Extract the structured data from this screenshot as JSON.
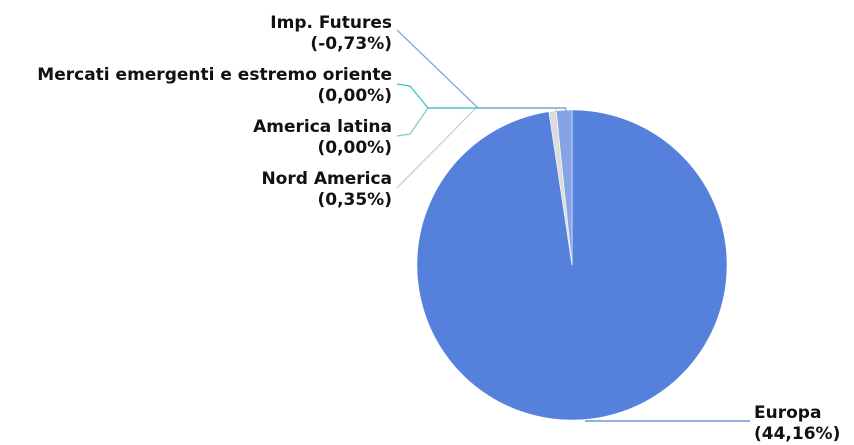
{
  "chart_data": {
    "type": "pie",
    "categories": [
      "Europa",
      "Nord America",
      "America latina",
      "Mercati emergenti e estremo oriente",
      "Imp. Futures"
    ],
    "values": [
      44.16,
      0.35,
      0,
      0,
      -0.73
    ],
    "value_labels": [
      "(44,16%)",
      "(0,35%)",
      "(0,00%)",
      "(0,00%)",
      "(-0,73%)"
    ],
    "colors": [
      "#5580dc",
      "#dcdcdc",
      "#7fd0b4",
      "#3fc4c4",
      "#86a4e4"
    ]
  }
}
